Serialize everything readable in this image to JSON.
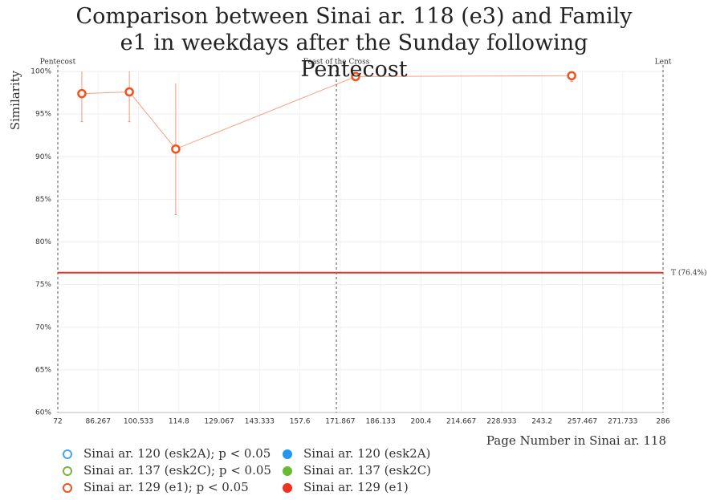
{
  "chart_data": {
    "type": "scatter",
    "title": "Comparison between Sinai ar. 118 (e3) and Family e1 in weekdays after the Sunday following Pentecost",
    "x_label": "Page Number in Sinai ar. 118",
    "y_label": "Similarity",
    "xlim": [
      72,
      286
    ],
    "xticks": [
      72,
      86.267,
      100.533,
      114.8,
      129.067,
      143.333,
      157.6,
      171.867,
      186.133,
      200.4,
      214.667,
      228.933,
      243.2,
      257.467,
      271.733,
      286
    ],
    "ylim": [
      60,
      100
    ],
    "yticks": [
      {
        "value": 60,
        "label": "60%"
      },
      {
        "value": 65,
        "label": "65%"
      },
      {
        "value": 70,
        "label": "70%"
      },
      {
        "value": 75,
        "label": "75%"
      },
      {
        "value": 80,
        "label": "80%"
      },
      {
        "value": 85,
        "label": "85%"
      },
      {
        "value": 90,
        "label": "90%"
      },
      {
        "value": 95,
        "label": "95%"
      },
      {
        "value": 100,
        "label": "100%"
      }
    ],
    "grid": true,
    "series": [
      {
        "name": "Sinai ar. 120 (esk2A); p < 0.05",
        "color": "#42a5f5",
        "hollow": true,
        "x": [],
        "values": [],
        "errors": []
      },
      {
        "name": "Sinai ar. 137 (esk2C); p < 0.05",
        "color": "#7cb342",
        "hollow": true,
        "x": [],
        "values": [],
        "errors": []
      },
      {
        "name": "Sinai ar. 129 (e1); p < 0.05",
        "color": "#f4511e",
        "hollow": true,
        "x": [
          80.5,
          97.3,
          113.7,
          177.3,
          253.7
        ],
        "values": [
          97.4,
          97.6,
          90.9,
          99.4,
          99.5
        ],
        "errors": [
          3.3,
          3.5,
          7.7,
          0.5,
          0.7
        ]
      },
      {
        "name": "Sinai ar. 120 (esk2A)",
        "color": "#2196f3",
        "hollow": false,
        "x": [],
        "values": [],
        "errors": []
      },
      {
        "name": "Sinai ar. 137 (esk2C)",
        "color": "#66bb33",
        "hollow": false,
        "x": [],
        "values": [],
        "errors": []
      },
      {
        "name": "Sinai ar. 129 (e1)",
        "color": "#f03020",
        "hollow": false,
        "x": [],
        "values": [],
        "errors": []
      }
    ],
    "threshold": {
      "label": "T (76.4%)",
      "value": 76.4,
      "color": "#e8352a"
    },
    "annotations": [
      {
        "label": "Pentecost",
        "x": 72
      },
      {
        "label": "Feast of the Cross",
        "x": 170.5
      },
      {
        "label": "Lent",
        "x": 286
      }
    ]
  }
}
